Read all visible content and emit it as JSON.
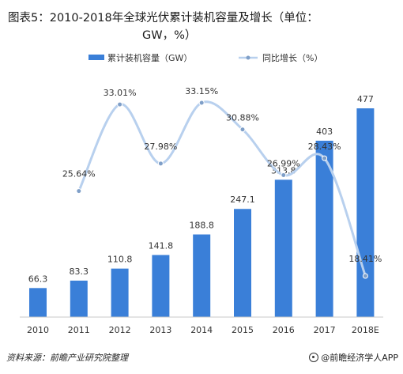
{
  "title_line1": "图表5：2010-2018年全球光伏累计装机容量及增长（单位：",
  "title_line2": "GW，%）",
  "chart_data": {
    "type": "bar",
    "categories": [
      "2010",
      "2011",
      "2012",
      "2013",
      "2014",
      "2015",
      "2016",
      "2017",
      "2018E"
    ],
    "series": [
      {
        "name": "累计装机容量（GW）",
        "type": "bar",
        "values": [
          66.3,
          83.3,
          110.8,
          141.8,
          188.8,
          247.1,
          313.8,
          403,
          477
        ],
        "labels": [
          "66.3",
          "83.3",
          "110.8",
          "141.8",
          "188.8",
          "247.1",
          "313.8",
          "403",
          "477"
        ],
        "color": "#3a7fd8"
      },
      {
        "name": "同比增长（%）",
        "type": "line",
        "values": [
          null,
          25.64,
          33.01,
          27.98,
          33.15,
          30.88,
          26.99,
          28.43,
          18.41
        ],
        "labels": [
          "",
          "25.64%",
          "33.01%",
          "27.98%",
          "33.15%",
          "30.88%",
          "26.99%",
          "28.43%",
          "18.41%"
        ],
        "color": "#b8d0ee"
      }
    ],
    "legend_position": "top",
    "grid": false
  },
  "footer": {
    "source": "资料来源：前瞻产业研究院整理",
    "brand": "@前瞻经济学人APP"
  }
}
